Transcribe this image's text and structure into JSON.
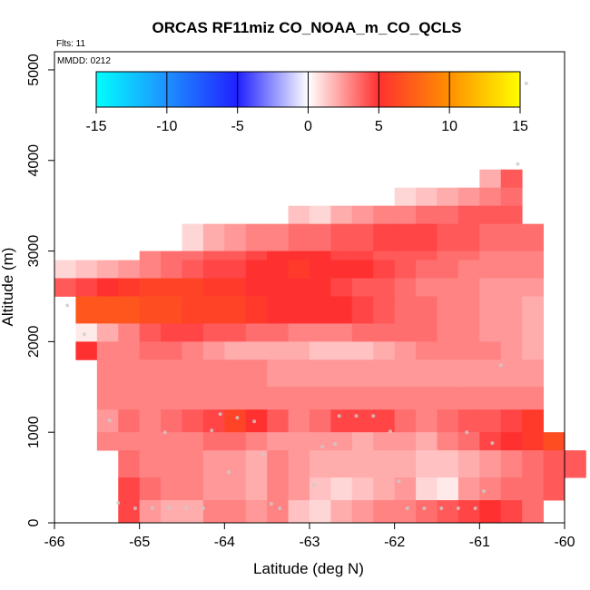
{
  "chart_data": {
    "type": "heatmap",
    "title": "ORCAS RF11miz CO_NOAA_m_CO_QCLS",
    "flights_label": "Flts: 11",
    "date_label": "MMDD: 0212",
    "xlabel": "Latitude (deg N)",
    "ylabel": "Altitude (m)",
    "xlim": [
      -66,
      -60
    ],
    "ylim": [
      0,
      5200
    ],
    "x_ticks": [
      -66,
      -65,
      -64,
      -63,
      -62,
      -61,
      -60
    ],
    "x_tick_labels": [
      "-66",
      "-65",
      "-64",
      "-63",
      "-62",
      "-61",
      "-60"
    ],
    "y_ticks": [
      0,
      1000,
      2000,
      3000,
      4000,
      5000
    ],
    "y_tick_labels": [
      "0",
      "1000",
      "2000",
      "3000",
      "4000",
      "5000"
    ],
    "colorbar": {
      "min": -15,
      "max": 15,
      "ticks": [
        -15,
        -10,
        -5,
        0,
        5,
        10,
        15
      ],
      "tick_labels": [
        "-15",
        "-10",
        "-5",
        "0",
        "5",
        "10",
        "15"
      ],
      "colors": [
        "#00ffff",
        "#1e90ff",
        "#2020ff",
        "#ffffff",
        "#ff3030",
        "#ff9000",
        "#ffff00"
      ]
    },
    "cell_size": {
      "lat": 0.25,
      "alt": 100
    },
    "rows": [
      {
        "y0": 3700,
        "y1": 3900,
        "x0": -61.0,
        "values": [
          2,
          4
        ]
      },
      {
        "y0": 3500,
        "y1": 3700,
        "x0": -62.0,
        "values": [
          1,
          1.5,
          2,
          2.5,
          3,
          3.5
        ]
      },
      {
        "y0": 3300,
        "y1": 3500,
        "x0": -63.25,
        "values": [
          1.5,
          1,
          2,
          2.5,
          3,
          3,
          3.5,
          3.5,
          4,
          4,
          4
        ]
      },
      {
        "y0": 3000,
        "y1": 3300,
        "x0": -64.5,
        "values": [
          1,
          2,
          2.5,
          3,
          3,
          3.5,
          3.5,
          4,
          4,
          4.5,
          4.5,
          4.5,
          4,
          4,
          3.5,
          3.5,
          3.5
        ]
      },
      {
        "y0": 2900,
        "y1": 3000,
        "x0": -65.0,
        "values": [
          3,
          3.5,
          3.5,
          4,
          4,
          4.5,
          5,
          5,
          5,
          4.5,
          4.5,
          4,
          4,
          4,
          3.5,
          3.5,
          3,
          3,
          3
        ]
      },
      {
        "y0": 2700,
        "y1": 2900,
        "x0": -66.0,
        "values": [
          1,
          1.5,
          2,
          2.5,
          3,
          3.5,
          4,
          4.5,
          4.5,
          5,
          5,
          5.5,
          5,
          5,
          5,
          4.5,
          4,
          3.5,
          3.5,
          3,
          3,
          3,
          3
        ]
      },
      {
        "y0": 2500,
        "y1": 2700,
        "x0": -66.0,
        "values": [
          4,
          4.5,
          5,
          5.5,
          6,
          6,
          6,
          5.5,
          5.5,
          5,
          5,
          5,
          5,
          4.5,
          4,
          4,
          3.5,
          3,
          3,
          3,
          2.5,
          2.5,
          2.5
        ]
      },
      {
        "y0": 2200,
        "y1": 2500,
        "x0": -65.75,
        "values": [
          7,
          7,
          7,
          6.5,
          6.5,
          6,
          6,
          6,
          5.5,
          5,
          5,
          5,
          5,
          4.5,
          4,
          3.5,
          3.5,
          3,
          3,
          2.5,
          2.5,
          2
        ]
      },
      {
        "y0": 2000,
        "y1": 2200,
        "x0": -65.75,
        "values": [
          0.5,
          2,
          3,
          4,
          4.5,
          4.5,
          4,
          4,
          3.5,
          3.5,
          3,
          3,
          3,
          3.5,
          3.5,
          3.5,
          3.5,
          3,
          3,
          2.5,
          2.5,
          2
        ]
      },
      {
        "y0": 1800,
        "y1": 2000,
        "x0": -65.75,
        "values": [
          5,
          3,
          3,
          3.5,
          3.5,
          3,
          2.5,
          2,
          2,
          2,
          2,
          1.5,
          1.5,
          1.5,
          2,
          2.5,
          3,
          3,
          3,
          3,
          2.5,
          2
        ]
      },
      {
        "y0": 1500,
        "y1": 1800,
        "x0": -65.5,
        "values": [
          3,
          3,
          3,
          3,
          3,
          3,
          3,
          3,
          2.5,
          2.5,
          2.5,
          2.5,
          2.5,
          2.5,
          2.5,
          2.5,
          2.5,
          2.5,
          2.5,
          2.5,
          2.5
        ]
      },
      {
        "y0": 1250,
        "y1": 1500,
        "x0": -65.5,
        "values": [
          3,
          3,
          3,
          3,
          3,
          3,
          3,
          3,
          3,
          3,
          3,
          3,
          3,
          3,
          3,
          3,
          3,
          3,
          3,
          3,
          3
        ]
      },
      {
        "y0": 1000,
        "y1": 1250,
        "x0": -65.5,
        "values": [
          2.5,
          3.5,
          3,
          3.5,
          4,
          4.5,
          6,
          5,
          4,
          3,
          3.5,
          4.5,
          4.5,
          4.5,
          3.5,
          3,
          3.5,
          4,
          4,
          4.5,
          5.5
        ]
      },
      {
        "y0": 800,
        "y1": 1000,
        "x0": -65.5,
        "values": [
          3,
          3,
          3,
          3,
          3,
          3.5,
          3.5,
          3,
          2.5,
          2.5,
          2.5,
          2.5,
          2,
          2.5,
          2.5,
          2,
          3,
          3.5,
          4.5,
          5,
          5.5,
          6.5
        ]
      },
      {
        "y0": 500,
        "y1": 800,
        "x0": -65.25,
        "values": [
          3.5,
          3,
          3,
          3,
          2.5,
          2.5,
          2,
          3,
          2.5,
          2,
          2,
          2,
          2,
          2,
          1.5,
          1.5,
          2,
          2.5,
          3,
          3.5,
          4,
          4
        ]
      },
      {
        "y0": 250,
        "y1": 500,
        "x0": -65.25,
        "values": [
          4.5,
          3.5,
          3,
          3,
          2.5,
          2.5,
          2,
          3,
          2.5,
          1.5,
          1,
          1.5,
          2,
          2.5,
          1,
          0.5,
          2.5,
          3,
          3.5,
          3.5,
          4
        ]
      },
      {
        "y0": 0,
        "y1": 250,
        "x0": -65.25,
        "values": [
          4.5,
          2.5,
          2,
          2,
          3,
          3,
          2.5,
          3,
          1.5,
          1,
          2,
          2.5,
          3,
          3,
          3.5,
          4,
          4.5,
          5,
          4.5,
          3.5
        ]
      }
    ],
    "points": [
      [
        -65.85,
        2400
      ],
      [
        -65.65,
        2080
      ],
      [
        -65.35,
        1130
      ],
      [
        -65.25,
        220
      ],
      [
        -65.05,
        160
      ],
      [
        -64.85,
        160
      ],
      [
        -64.65,
        170
      ],
      [
        -64.45,
        170
      ],
      [
        -64.25,
        160
      ],
      [
        -64.15,
        1020
      ],
      [
        -64.05,
        1200
      ],
      [
        -63.95,
        560
      ],
      [
        -63.85,
        1160
      ],
      [
        -63.65,
        1120
      ],
      [
        -63.55,
        760
      ],
      [
        -63.45,
        210
      ],
      [
        -63.35,
        160
      ],
      [
        -62.95,
        420
      ],
      [
        -62.85,
        840
      ],
      [
        -62.65,
        1180
      ],
      [
        -62.45,
        1180
      ],
      [
        -62.25,
        1180
      ],
      [
        -62.05,
        1010
      ],
      [
        -61.95,
        460
      ],
      [
        -61.85,
        160
      ],
      [
        -61.65,
        160
      ],
      [
        -61.45,
        160
      ],
      [
        -61.25,
        160
      ],
      [
        -61.05,
        160
      ],
      [
        -60.95,
        350
      ],
      [
        -60.85,
        880
      ],
      [
        -60.75,
        1740
      ],
      [
        -60.55,
        3960
      ],
      [
        -60.45,
        4850
      ],
      [
        -61.15,
        1000
      ],
      [
        -62.7,
        870
      ],
      [
        -64.7,
        1000
      ]
    ]
  }
}
